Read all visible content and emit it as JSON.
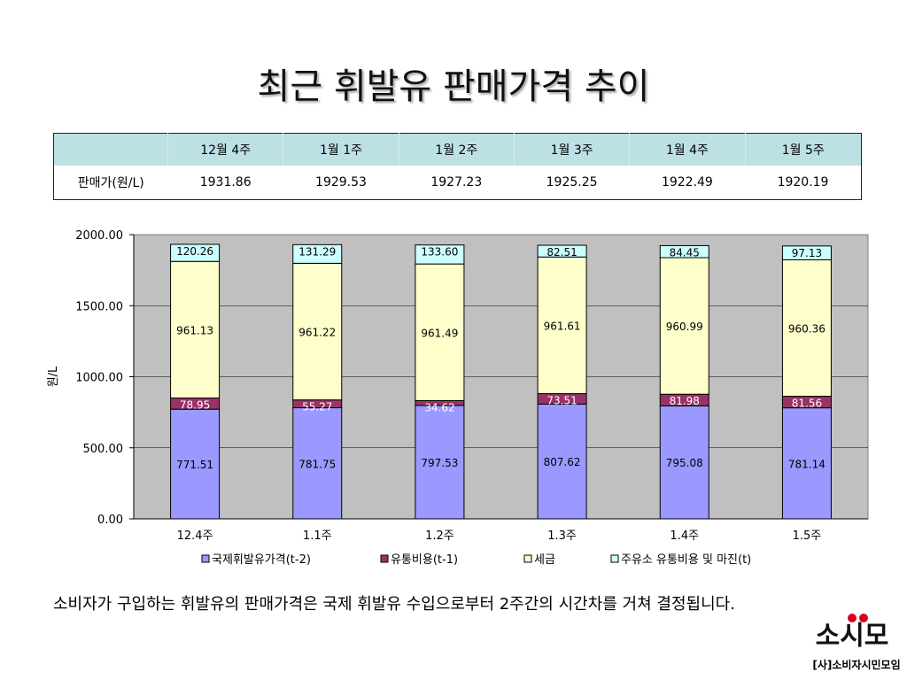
{
  "title": "최근 휘발유 판매가격 추이",
  "table": {
    "headers": [
      "",
      "12월 4주",
      "1월 1주",
      "1월 2주",
      "1월 3주",
      "1월 4주",
      "1월 5주"
    ],
    "row_label": "판매가(원/L)",
    "values": [
      "1931.86",
      "1929.53",
      "1927.23",
      "1925.25",
      "1922.49",
      "1920.19"
    ]
  },
  "chart_data": {
    "type": "bar",
    "stacked": true,
    "categories": [
      "12.4주",
      "1.1주",
      "1.2주",
      "1.3주",
      "1.4주",
      "1.5주"
    ],
    "series": [
      {
        "name": "국제휘발유가격(t-2)",
        "color": "#9999ff",
        "values": [
          771.51,
          781.75,
          797.53,
          807.62,
          795.08,
          781.14
        ]
      },
      {
        "name": "유통비용(t-1)",
        "color": "#993366",
        "values": [
          78.95,
          55.27,
          34.62,
          73.51,
          81.98,
          81.56
        ]
      },
      {
        "name": "세금",
        "color": "#ffffcc",
        "values": [
          961.13,
          961.22,
          961.49,
          961.61,
          960.99,
          960.36
        ]
      },
      {
        "name": "주유소 유통비용 및 마진(t)",
        "color": "#ccffff",
        "values": [
          120.26,
          131.29,
          133.6,
          82.51,
          84.45,
          97.13
        ]
      }
    ],
    "data_labels": [
      [
        "771.51",
        "781.75",
        "797.53",
        "807.62",
        "795.08",
        "781.14"
      ],
      [
        "78.95",
        "55.27",
        "34.62",
        "73.51",
        "81.98",
        "81.56"
      ],
      [
        "961.13",
        "961.22",
        "961.49",
        "961.61",
        "960.99",
        "960.36"
      ],
      [
        "120.26",
        "131.29",
        "133.60",
        "82.51",
        "84.45",
        "97.13"
      ]
    ],
    "ylabel": "원/L",
    "xlabel": "",
    "ylim": [
      0,
      2000
    ],
    "yticks": [
      "0.00",
      "500.00",
      "1000.00",
      "1500.00",
      "2000.00"
    ],
    "grid": true,
    "plot_background": "#c0c0c0",
    "legend_position": "bottom"
  },
  "footnote": "소비자가 구입하는 휘발유의 판매가격은 국제 휘발유 수입으로부터 2주간의 시간차를 거쳐 결정됩니다.",
  "logo": {
    "mark": "소시모",
    "text": "[사]소비자시민모임",
    "accent": "#d9001b"
  }
}
